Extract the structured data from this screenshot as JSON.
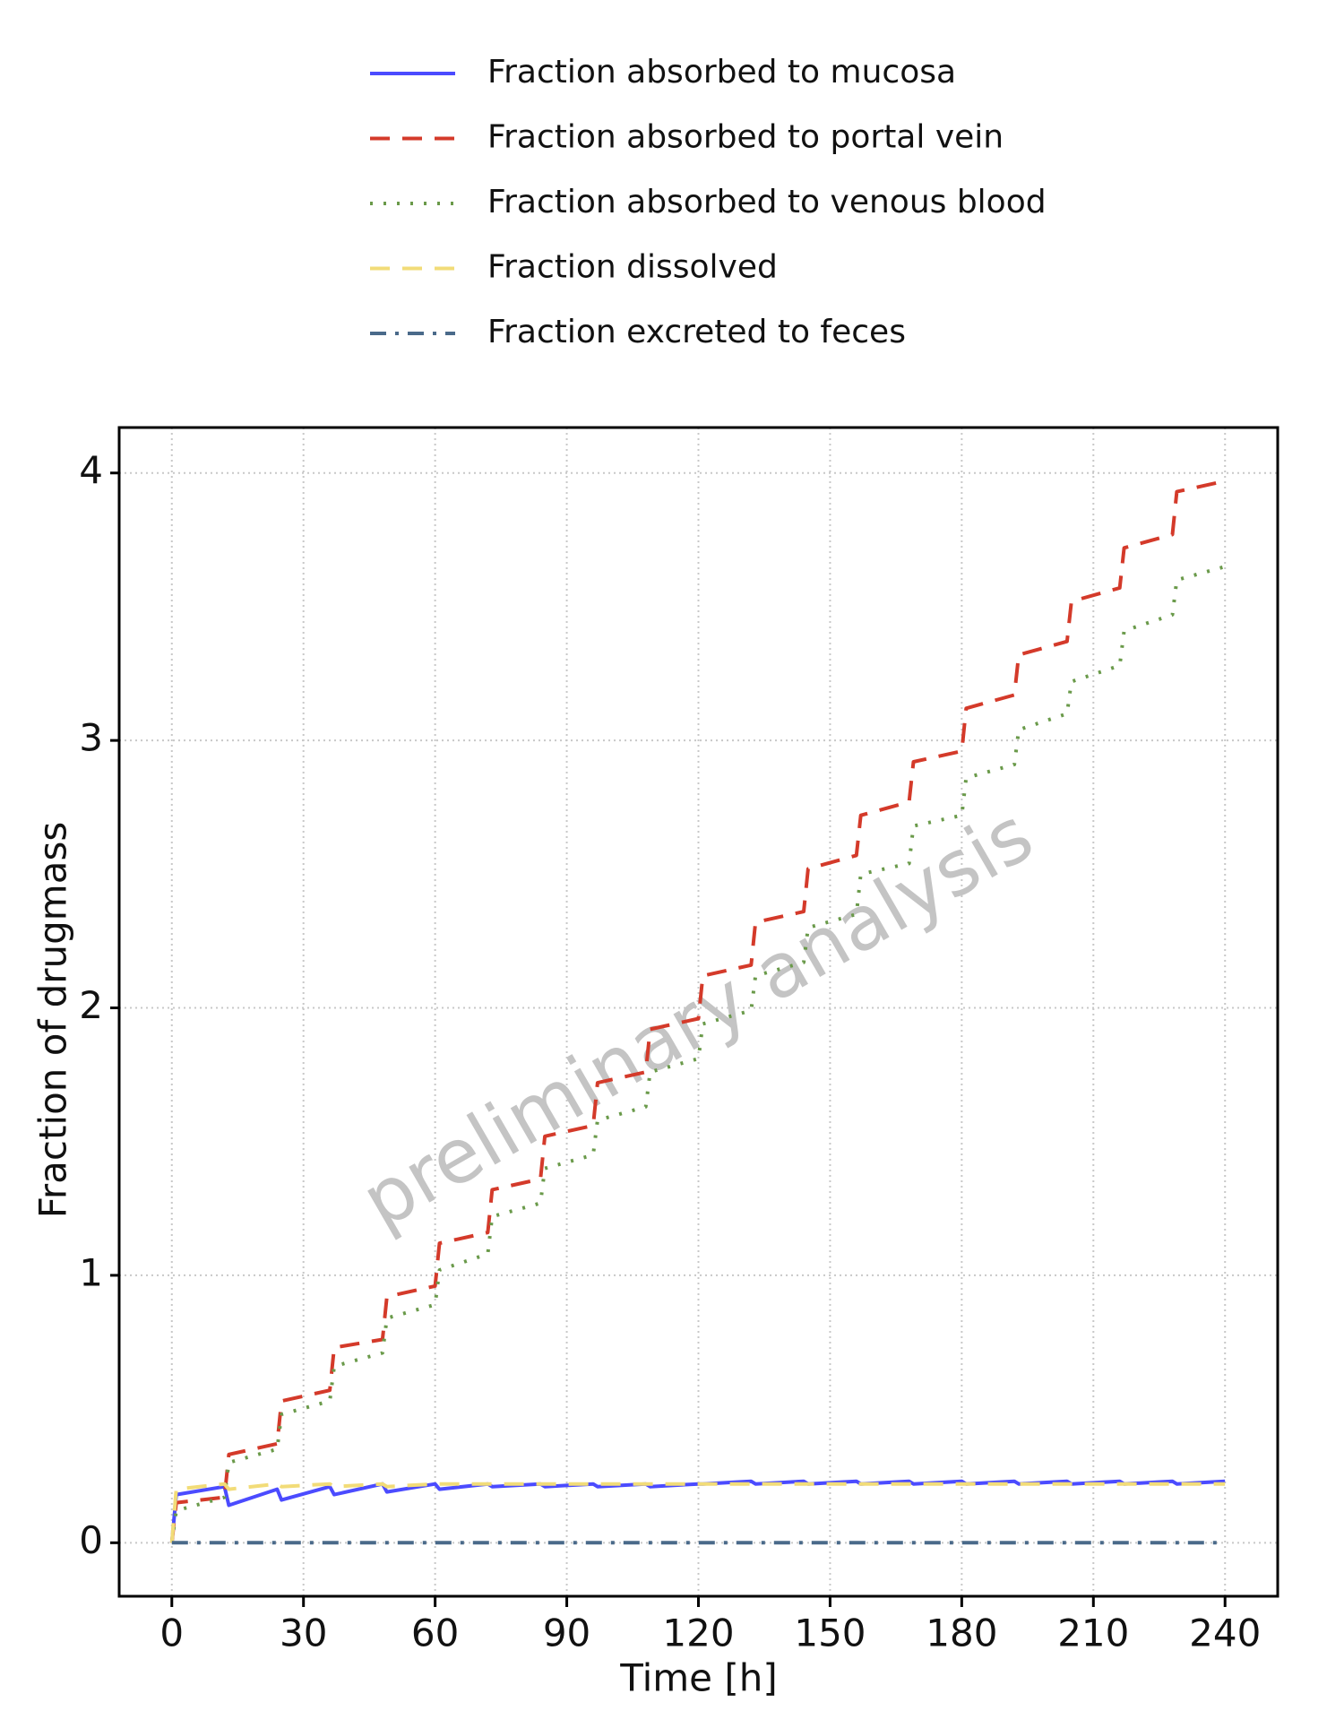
{
  "chart_data": {
    "type": "line",
    "xlabel": "Time [h]",
    "ylabel": "Fraction of drugmass",
    "watermark": "preliminary analysis",
    "xlim": [
      -12,
      252
    ],
    "ylim": [
      -0.2,
      4.17
    ],
    "xticks": [
      0,
      30,
      60,
      90,
      120,
      150,
      180,
      210,
      240
    ],
    "yticks": [
      0,
      1,
      2,
      3,
      4
    ],
    "grid": true,
    "x": [
      0,
      1,
      12,
      13,
      24,
      25,
      36,
      37,
      48,
      49,
      60,
      61,
      72,
      73,
      84,
      85,
      96,
      97,
      108,
      109,
      120,
      121,
      132,
      133,
      144,
      145,
      156,
      157,
      168,
      169,
      180,
      181,
      192,
      193,
      204,
      205,
      216,
      217,
      228,
      229,
      240
    ],
    "series": [
      {
        "name": "Fraction absorbed to mucosa",
        "color": "#4b4bff",
        "linestyle": "solid",
        "values": [
          0,
          0.18,
          0.21,
          0.14,
          0.2,
          0.16,
          0.21,
          0.18,
          0.22,
          0.19,
          0.22,
          0.2,
          0.22,
          0.21,
          0.22,
          0.21,
          0.22,
          0.21,
          0.22,
          0.21,
          0.22,
          0.22,
          0.23,
          0.22,
          0.23,
          0.22,
          0.23,
          0.22,
          0.23,
          0.22,
          0.23,
          0.22,
          0.23,
          0.22,
          0.23,
          0.22,
          0.23,
          0.22,
          0.23,
          0.22,
          0.23
        ]
      },
      {
        "name": "Fraction absorbed to portal vein",
        "color": "#d43a2a",
        "linestyle": "dashed",
        "values": [
          0,
          0.15,
          0.17,
          0.33,
          0.37,
          0.53,
          0.57,
          0.73,
          0.76,
          0.92,
          0.96,
          1.12,
          1.16,
          1.32,
          1.36,
          1.52,
          1.56,
          1.72,
          1.76,
          1.92,
          1.96,
          2.12,
          2.16,
          2.32,
          2.36,
          2.52,
          2.57,
          2.72,
          2.77,
          2.92,
          2.96,
          3.12,
          3.17,
          3.32,
          3.37,
          3.52,
          3.57,
          3.72,
          3.77,
          3.93,
          3.97
        ]
      },
      {
        "name": "Fraction absorbed to venous blood",
        "color": "#6a9a4a",
        "linestyle": "dotted",
        "values": [
          0,
          0.12,
          0.17,
          0.3,
          0.35,
          0.48,
          0.53,
          0.66,
          0.71,
          0.84,
          0.89,
          1.02,
          1.08,
          1.22,
          1.27,
          1.4,
          1.45,
          1.58,
          1.63,
          1.76,
          1.81,
          1.94,
          1.99,
          2.12,
          2.17,
          2.3,
          2.35,
          2.5,
          2.54,
          2.68,
          2.72,
          2.86,
          2.91,
          3.04,
          3.1,
          3.22,
          3.28,
          3.41,
          3.47,
          3.6,
          3.65
        ]
      },
      {
        "name": "Fraction dissolved",
        "color": "#f2dc78",
        "linestyle": "dashed",
        "values": [
          0,
          0.2,
          0.22,
          0.2,
          0.22,
          0.21,
          0.22,
          0.21,
          0.22,
          0.21,
          0.22,
          0.22,
          0.22,
          0.22,
          0.22,
          0.22,
          0.22,
          0.22,
          0.22,
          0.22,
          0.22,
          0.22,
          0.22,
          0.22,
          0.22,
          0.22,
          0.22,
          0.22,
          0.22,
          0.22,
          0.22,
          0.22,
          0.22,
          0.22,
          0.22,
          0.22,
          0.22,
          0.22,
          0.22,
          0.22,
          0.22
        ]
      },
      {
        "name": "Fraction excreted to feces",
        "color": "#4a6a8a",
        "linestyle": "dashdot",
        "values": [
          0,
          0,
          0,
          0,
          0,
          0,
          0,
          0,
          0,
          0,
          0,
          0,
          0,
          0,
          0,
          0,
          0,
          0,
          0,
          0,
          0,
          0,
          0,
          0,
          0,
          0,
          0,
          0,
          0,
          0,
          0,
          0,
          0,
          0,
          0,
          0,
          0,
          0,
          0,
          0,
          0
        ]
      }
    ]
  }
}
